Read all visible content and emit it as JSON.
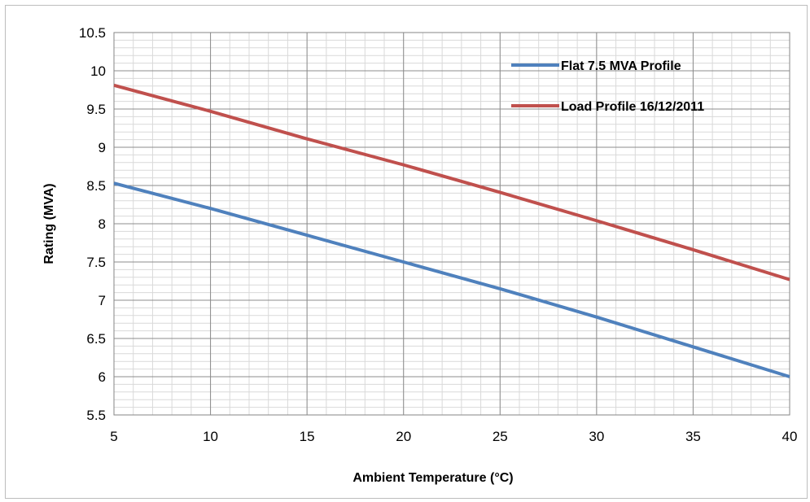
{
  "chart_data": {
    "type": "line",
    "title": "",
    "xlabel": "Ambient Temperature (°C)",
    "ylabel": "Rating (MVA)",
    "xlim": [
      5,
      40
    ],
    "ylim": [
      5.5,
      10.5
    ],
    "x_ticks": [
      "5",
      "10",
      "15",
      "20",
      "25",
      "30",
      "35",
      "40"
    ],
    "y_ticks": [
      "10.5",
      "10",
      "9.5",
      "9",
      "8.5",
      "8",
      "7.5",
      "7",
      "6.5",
      "6",
      "5.5"
    ],
    "grid": true,
    "legend_position": "top-right",
    "series": [
      {
        "name": "Flat 7.5 MVA Profile",
        "color": "#4f81bd",
        "x": [
          5,
          10,
          15,
          20,
          25,
          30,
          35,
          40
        ],
        "y": [
          8.53,
          8.2,
          7.85,
          7.5,
          7.15,
          6.78,
          6.39,
          6.0
        ]
      },
      {
        "name": "Load Profile 16/12/2011",
        "color": "#c0504d",
        "x": [
          5,
          10,
          15,
          20,
          25,
          30,
          35,
          40
        ],
        "y": [
          9.81,
          9.47,
          9.11,
          8.77,
          8.41,
          8.04,
          7.66,
          7.27
        ]
      }
    ]
  }
}
